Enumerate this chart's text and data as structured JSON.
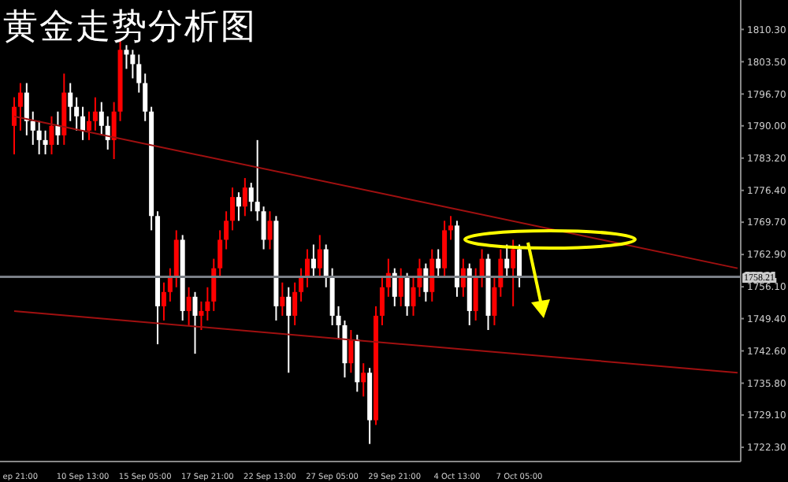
{
  "chart_data": {
    "type": "candlestick",
    "title": "黄金走势分析图",
    "categories": [
      null,
      "ep 21:00",
      null,
      null,
      null,
      null,
      null,
      null,
      null,
      null,
      null,
      "10 Sep 13:00",
      null,
      null,
      null,
      null,
      null,
      null,
      null,
      null,
      null,
      "15 Sep 05:00",
      null,
      null,
      null,
      null,
      null,
      null,
      null,
      null,
      null,
      "17 Sep 21:00",
      null,
      null,
      null,
      null,
      null,
      null,
      null,
      null,
      null,
      "22 Sep 13:00",
      null,
      null,
      null,
      null,
      null,
      null,
      null,
      null,
      null,
      "27 Sep 05:00",
      null,
      null,
      null,
      null,
      null,
      null,
      null,
      null,
      null,
      "29 Sep 21:00",
      null,
      null,
      null,
      null,
      null,
      null,
      null,
      null,
      null,
      "4 Oct 13:00",
      null,
      null,
      null,
      null,
      null,
      null,
      null,
      null,
      null,
      "7 Oct 05:00",
      null,
      null,
      null,
      null,
      null,
      null,
      null,
      null,
      null,
      null,
      null,
      null,
      null,
      null,
      null,
      null,
      null,
      null,
      null,
      null,
      null,
      null,
      null,
      null,
      null,
      null,
      null,
      null,
      null,
      null,
      null,
      null,
      null,
      null,
      null
    ],
    "ohlc": [
      [
        1790,
        1796,
        1784,
        1794
      ],
      [
        1794,
        1799,
        1789,
        1797
      ],
      [
        1797,
        1799,
        1788,
        1791
      ],
      [
        1791,
        1793,
        1786,
        1789
      ],
      [
        1789,
        1791,
        1784,
        1787
      ],
      [
        1787,
        1789,
        1784,
        1786
      ],
      [
        1786,
        1792,
        1784,
        1790
      ],
      [
        1790,
        1793,
        1786,
        1788
      ],
      [
        1788,
        1801,
        1786,
        1797
      ],
      [
        1797,
        1799,
        1791,
        1794
      ],
      [
        1794,
        1796,
        1789,
        1792
      ],
      [
        1792,
        1794,
        1787,
        1789
      ],
      [
        1789,
        1793,
        1787,
        1791
      ],
      [
        1791,
        1796,
        1789,
        1793
      ],
      [
        1793,
        1795,
        1788,
        1790
      ],
      [
        1790,
        1792,
        1785,
        1787
      ],
      [
        1787,
        1795,
        1783,
        1793
      ],
      [
        1793,
        1808,
        1791,
        1806
      ],
      [
        1806,
        1807,
        1802,
        1805
      ],
      [
        1805,
        1806,
        1800,
        1803
      ],
      [
        1803,
        1805,
        1797,
        1799
      ],
      [
        1799,
        1801,
        1791,
        1793
      ],
      [
        1793,
        1794,
        1768,
        1771
      ],
      [
        1771,
        1772,
        1744,
        1752
      ],
      [
        1752,
        1757,
        1749,
        1755
      ],
      [
        1755,
        1760,
        1753,
        1758
      ],
      [
        1758,
        1768,
        1756,
        1766
      ],
      [
        1766,
        1767,
        1749,
        1751
      ],
      [
        1751,
        1756,
        1748,
        1754
      ],
      [
        1754,
        1755,
        1742,
        1750
      ],
      [
        1750,
        1753,
        1747,
        1751
      ],
      [
        1751,
        1756,
        1749,
        1753
      ],
      [
        1753,
        1762,
        1751,
        1760
      ],
      [
        1760,
        1768,
        1758,
        1766
      ],
      [
        1766,
        1772,
        1764,
        1770
      ],
      [
        1770,
        1777,
        1768,
        1775
      ],
      [
        1775,
        1776,
        1770,
        1773
      ],
      [
        1773,
        1779,
        1771,
        1777
      ],
      [
        1777,
        1778,
        1772,
        1774
      ],
      [
        1774,
        1787,
        1770,
        1772
      ],
      [
        1772,
        1773,
        1764,
        1766
      ],
      [
        1766,
        1772,
        1764,
        1770
      ],
      [
        1770,
        1771,
        1749,
        1752
      ],
      [
        1752,
        1757,
        1750,
        1754
      ],
      [
        1754,
        1756,
        1738,
        1750
      ],
      [
        1750,
        1757,
        1748,
        1755
      ],
      [
        1755,
        1760,
        1753,
        1758
      ],
      [
        1758,
        1764,
        1756,
        1762
      ],
      [
        1762,
        1765,
        1758,
        1760
      ],
      [
        1760,
        1767,
        1758,
        1764
      ],
      [
        1764,
        1765,
        1756,
        1758
      ],
      [
        1758,
        1760,
        1748,
        1750
      ],
      [
        1750,
        1752,
        1745,
        1748
      ],
      [
        1748,
        1749,
        1737,
        1740
      ],
      [
        1740,
        1747,
        1738,
        1745
      ],
      [
        1745,
        1746,
        1734,
        1736
      ],
      [
        1736,
        1740,
        1733,
        1738
      ],
      [
        1738,
        1739,
        1723,
        1728
      ],
      [
        1728,
        1752,
        1727,
        1750
      ],
      [
        1750,
        1758,
        1748,
        1756
      ],
      [
        1756,
        1762,
        1754,
        1759
      ],
      [
        1759,
        1760,
        1752,
        1754
      ],
      [
        1754,
        1760,
        1752,
        1758
      ],
      [
        1758,
        1759,
        1750,
        1752
      ],
      [
        1752,
        1758,
        1750,
        1756
      ],
      [
        1756,
        1762,
        1754,
        1760
      ],
      [
        1760,
        1761,
        1753,
        1755
      ],
      [
        1755,
        1764,
        1753,
        1762
      ],
      [
        1762,
        1764,
        1758,
        1760
      ],
      [
        1760,
        1770,
        1758,
        1768
      ],
      [
        1768,
        1771,
        1766,
        1769
      ],
      [
        1769,
        1770,
        1754,
        1756
      ],
      [
        1756,
        1762,
        1754,
        1760
      ],
      [
        1760,
        1761,
        1748,
        1751
      ],
      [
        1751,
        1760,
        1749,
        1758
      ],
      [
        1758,
        1764,
        1756,
        1762
      ],
      [
        1762,
        1763,
        1747,
        1750
      ],
      [
        1750,
        1758,
        1748,
        1756
      ],
      [
        1756,
        1764,
        1754,
        1762
      ],
      [
        1762,
        1765,
        1758,
        1760
      ],
      [
        1760,
        1766,
        1752,
        1764
      ],
      [
        1764,
        1765,
        1756,
        1758.21
      ],
      null,
      null,
      null,
      null,
      null,
      null,
      null,
      null,
      null,
      null,
      null,
      null,
      null,
      null,
      null,
      null,
      null,
      null,
      null,
      null,
      null,
      null,
      null,
      null,
      null,
      null,
      null,
      null,
      null,
      null,
      null,
      null,
      null,
      null,
      null
    ],
    "colors": [
      "#ff0000",
      "#ff0000",
      "#ffffff",
      "#ffffff",
      "#ffffff",
      "#ffffff",
      "#ff0000",
      "#ffffff",
      "#ff0000",
      "#ffffff",
      "#ffffff",
      "#ffffff",
      "#ff0000",
      "#ff0000",
      "#ffffff",
      "#ffffff",
      "#ff0000",
      "#ff0000",
      "#ffffff",
      "#ffffff",
      "#ffffff",
      "#ffffff",
      "#ffffff",
      "#ffffff",
      "#ff0000",
      "#ff0000",
      "#ff0000",
      "#ffffff",
      "#ff0000",
      "#ffffff",
      "#ff0000",
      "#ff0000",
      "#ff0000",
      "#ff0000",
      "#ff0000",
      "#ff0000",
      "#ffffff",
      "#ff0000",
      "#ffffff",
      "#ffffff",
      "#ffffff",
      "#ff0000",
      "#ffffff",
      "#ff0000",
      "#ffffff",
      "#ff0000",
      "#ff0000",
      "#ff0000",
      "#ffffff",
      "#ff0000",
      "#ffffff",
      "#ffffff",
      "#ffffff",
      "#ffffff",
      "#ff0000",
      "#ffffff",
      "#ff0000",
      "#ffffff",
      "#ff0000",
      "#ff0000",
      "#ff0000",
      "#ffffff",
      "#ff0000",
      "#ffffff",
      "#ff0000",
      "#ff0000",
      "#ffffff",
      "#ff0000",
      "#ffffff",
      "#ff0000",
      "#ff0000",
      "#ffffff",
      "#ff0000",
      "#ffffff",
      "#ff0000",
      "#ff0000",
      "#ffffff",
      "#ff0000",
      "#ff0000",
      "#ffffff",
      "#ff0000",
      "#ffffff",
      null,
      null,
      null,
      null,
      null,
      null,
      null,
      null,
      null,
      null,
      null,
      null,
      null,
      null,
      null,
      null,
      null,
      null,
      null,
      null,
      null,
      null,
      null,
      null,
      null,
      null,
      null,
      null,
      null,
      null,
      null,
      null,
      null,
      null,
      null
    ],
    "series": [
      {
        "type": "line",
        "color": "#a01010",
        "values": [
          1792,
          null,
          null,
          null,
          null,
          null,
          null,
          null,
          null,
          null,
          null,
          null,
          null,
          null,
          null,
          null,
          null,
          null,
          null,
          null,
          null,
          null,
          null,
          null,
          null,
          null,
          null,
          null,
          null,
          null,
          null,
          null,
          null,
          null,
          null,
          null,
          null,
          null,
          null,
          null,
          null,
          null,
          null,
          null,
          null,
          null,
          null,
          null,
          null,
          null,
          null,
          null,
          null,
          null,
          null,
          null,
          null,
          null,
          null,
          null,
          null,
          null,
          null,
          null,
          null,
          null,
          null,
          null,
          null,
          null,
          null,
          null,
          null,
          null,
          null,
          null,
          null,
          null,
          null,
          null,
          null,
          null,
          null,
          null,
          null,
          null,
          null,
          null,
          null,
          null,
          null,
          null,
          null,
          null,
          null,
          null,
          null,
          null,
          null,
          null,
          null,
          null,
          null,
          null,
          null,
          null,
          null,
          null,
          null,
          null,
          null,
          null,
          null,
          null,
          null,
          null,
          1760
        ]
      },
      {
        "type": "line",
        "color": "#a01010",
        "values": [
          1751,
          null,
          null,
          null,
          null,
          null,
          null,
          null,
          null,
          null,
          null,
          null,
          null,
          null,
          null,
          null,
          null,
          null,
          null,
          null,
          null,
          null,
          null,
          null,
          null,
          null,
          null,
          null,
          null,
          null,
          null,
          null,
          null,
          null,
          null,
          null,
          null,
          null,
          null,
          null,
          null,
          null,
          null,
          null,
          null,
          null,
          null,
          null,
          null,
          null,
          null,
          null,
          null,
          null,
          null,
          null,
          null,
          null,
          null,
          null,
          null,
          null,
          null,
          null,
          null,
          null,
          null,
          null,
          null,
          null,
          null,
          null,
          null,
          null,
          null,
          null,
          null,
          null,
          null,
          null,
          null,
          null,
          null,
          null,
          null,
          null,
          null,
          null,
          null,
          null,
          null,
          null,
          null,
          null,
          null,
          null,
          null,
          null,
          null,
          null,
          null,
          null,
          null,
          null,
          null,
          null,
          null,
          null,
          null,
          null,
          null,
          null,
          null,
          null,
          null,
          null,
          1738
        ]
      }
    ],
    "ylim": [
      1719.3,
      1816.5
    ],
    "yticks": [
      {
        "value": 1722.3,
        "label": "1722.30"
      },
      {
        "value": 1729.1,
        "label": "1729.10"
      },
      {
        "value": 1735.8,
        "label": "1735.80"
      },
      {
        "value": 1742.6,
        "label": "1742.60"
      },
      {
        "value": 1749.4,
        "label": "1749.40"
      },
      {
        "value": 1756.1,
        "label": "1756.10"
      },
      {
        "value": 1762.9,
        "label": "1762.90"
      },
      {
        "value": 1769.7,
        "label": "1769.70"
      },
      {
        "value": 1776.4,
        "label": "1776.40"
      },
      {
        "value": 1783.2,
        "label": "1783.20"
      },
      {
        "value": 1790.0,
        "label": "1790.00"
      },
      {
        "value": 1796.7,
        "label": "1796.70"
      },
      {
        "value": 1803.5,
        "label": "1803.50"
      },
      {
        "value": 1810.3,
        "label": "1810.30"
      }
    ],
    "ref_lines": [
      {
        "axis": "y",
        "value": 1758.21,
        "label": "1758.21",
        "color": "#7a7f86"
      }
    ]
  }
}
